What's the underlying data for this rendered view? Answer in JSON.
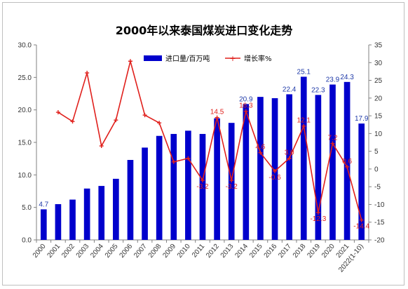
{
  "chart_data": {
    "type": "bar+line",
    "title": "2000年以来泰国煤炭进口变化走势",
    "categories": [
      "2000",
      "2001",
      "2002",
      "2003",
      "2004",
      "2005",
      "2006",
      "2007",
      "2008",
      "2009",
      "2010",
      "2011",
      "2012",
      "2013",
      "2014",
      "2015",
      "2016",
      "2017",
      "2018",
      "2019",
      "2020",
      "2021",
      "2022(1-10)"
    ],
    "series": [
      {
        "name": "进口量/百万吨",
        "type": "bar",
        "axis": "left",
        "color": "#0000cc",
        "values": [
          4.7,
          5.5,
          6.2,
          7.9,
          8.3,
          9.4,
          12.3,
          14.2,
          16.0,
          16.3,
          16.8,
          16.3,
          18.7,
          18.0,
          20.9,
          22.0,
          21.8,
          22.4,
          25.1,
          22.3,
          23.9,
          24.3,
          17.9
        ],
        "labels": {
          "0": "4.7",
          "12": "",
          "14": "20.9",
          "17": "22.4",
          "18": "25.1",
          "19": "22.3",
          "20": "23.9",
          "21": "24.3",
          "22": "17.9"
        }
      },
      {
        "name": "增长率%",
        "type": "line",
        "axis": "right",
        "color": "#e0201c",
        "values": [
          null,
          16.0,
          13.4,
          27.1,
          6.5,
          13.8,
          30.4,
          15.2,
          13.0,
          2.0,
          3.0,
          -3.2,
          14.5,
          -3.2,
          16.3,
          4.6,
          -0.6,
          3.0,
          12.1,
          -12.3,
          7.2,
          0.6,
          -14.4
        ],
        "labels": {
          "11": "-3.2",
          "12": "14.5",
          "13": "-3.2",
          "14": "16.3",
          "15": "4.6",
          "16": "-0.6",
          "17": "3.0",
          "18": "12.1",
          "19": "-12.3",
          "20": "7.2",
          "21": "0.6",
          "22": "-14.4"
        }
      }
    ],
    "y_left": {
      "min": 0,
      "max": 30,
      "ticks": [
        "0.0",
        "5.0",
        "10.0",
        "15.0",
        "20.0",
        "25.0",
        "30.0"
      ]
    },
    "y_right": {
      "min": -20,
      "max": 35,
      "ticks": [
        "-20",
        "-15",
        "-10",
        "-5",
        "0",
        "5",
        "10",
        "15",
        "20",
        "25",
        "30",
        "35"
      ]
    },
    "grid": false,
    "legend": "top-center"
  }
}
